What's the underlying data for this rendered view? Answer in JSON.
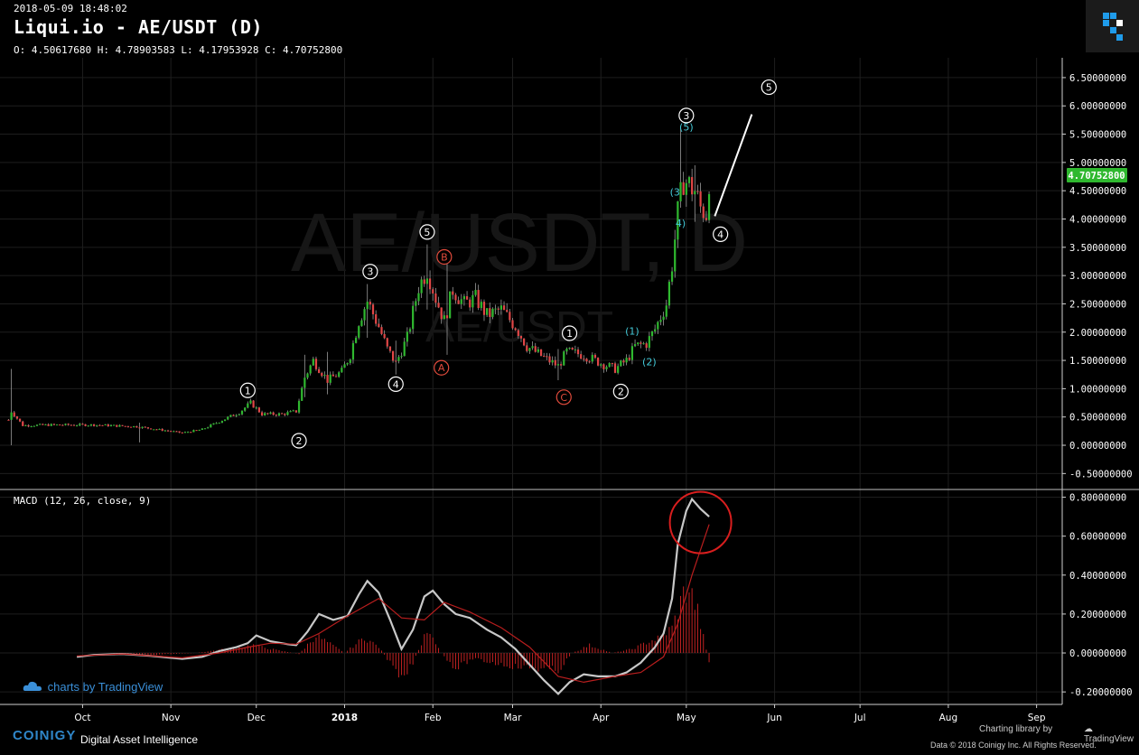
{
  "header": {
    "timestamp": "2018-05-09 18:48:02",
    "title": "Liqui.io - AE/USDT (D)",
    "ohlc": "O: 4.50617680 H: 4.78903583 L: 4.17953928 C: 4.70752800"
  },
  "watermark": {
    "line1": "AE/USDT, D",
    "line2": "AE/USDT"
  },
  "price_badge": "4.70752800",
  "macd_label": "MACD (12, 26, close, 9)",
  "footer": {
    "tv_badge": "charts by TradingView",
    "brand": "COINIGY",
    "tagline": "Digital Asset Intelligence",
    "charting_by": "Charting library by",
    "tv_name": "TradingView",
    "copyright": "Data © 2018  Coinigy Inc. All Rights Reserved."
  },
  "colors": {
    "background": "#000000",
    "up": "#2fb82f",
    "down": "#e04646",
    "grid": "#1e1e1e",
    "macd_line": "#c8c8c8",
    "signal_line": "#b81e1e",
    "histogram": "#c22222",
    "wave_white": "#ffffff",
    "wave_cyan": "#43c9d8",
    "wave_red": "#e14b3c",
    "price_badge": "#2fb82f",
    "highlight_circle": "#d81e1e"
  },
  "chart_data": [
    {
      "type": "candlestick",
      "title": "Liqui.io - AE/USDT (D)",
      "x_tick_labels": [
        "Oct",
        "Nov",
        "Dec",
        "2018",
        "Feb",
        "Mar",
        "Apr",
        "May",
        "Jun",
        "Jul",
        "Aug",
        "Sep"
      ],
      "x_ticks": [
        "2017-10-01",
        "2017-11-01",
        "2017-12-01",
        "2018-01-01",
        "2018-02-01",
        "2018-03-01",
        "2018-04-01",
        "2018-05-01",
        "2018-06-01",
        "2018-07-01",
        "2018-08-01",
        "2018-09-01"
      ],
      "y_tick_labels": [
        "6.50000000",
        "6.00000000",
        "5.50000000",
        "5.00000000",
        "4.50000000",
        "4.00000000",
        "3.50000000",
        "3.00000000",
        "2.50000000",
        "2.00000000",
        "1.50000000",
        "1.00000000",
        "0.50000000",
        "0.00000000",
        "-0.50000000"
      ],
      "y_ticks": [
        6.5,
        6.0,
        5.5,
        5.0,
        4.5,
        4.0,
        3.5,
        3.0,
        2.5,
        2.0,
        1.5,
        1.0,
        0.5,
        0.0,
        -0.5
      ],
      "ylim": [
        -0.75,
        6.85
      ],
      "xlim": [
        "2017-09-02",
        "2018-09-10"
      ],
      "grid": true,
      "last_close": 4.707528,
      "close_path": [
        [
          "2017-09-05",
          0.45
        ],
        [
          "2017-09-06",
          0.6
        ],
        [
          "2017-09-10",
          0.35
        ],
        [
          "2017-09-20",
          0.36
        ],
        [
          "2017-10-05",
          0.36
        ],
        [
          "2017-10-20",
          0.33
        ],
        [
          "2017-11-05",
          0.22
        ],
        [
          "2017-11-12",
          0.28
        ],
        [
          "2017-11-18",
          0.42
        ],
        [
          "2017-11-25",
          0.58
        ],
        [
          "2017-11-29",
          0.75
        ],
        [
          "2017-12-03",
          0.55
        ],
        [
          "2017-12-10",
          0.55
        ],
        [
          "2017-12-15",
          0.6
        ],
        [
          "2017-12-18",
          1.2
        ],
        [
          "2017-12-21",
          1.5
        ],
        [
          "2017-12-26",
          1.15
        ],
        [
          "2017-12-31",
          1.3
        ],
        [
          "2018-01-03",
          1.6
        ],
        [
          "2018-01-06",
          2.2
        ],
        [
          "2018-01-09",
          2.55
        ],
        [
          "2018-01-13",
          2.1
        ],
        [
          "2018-01-16",
          1.7
        ],
        [
          "2018-01-19",
          1.45
        ],
        [
          "2018-01-23",
          1.9
        ],
        [
          "2018-01-27",
          2.8
        ],
        [
          "2018-01-30",
          3.1
        ],
        [
          "2018-02-02",
          2.6
        ],
        [
          "2018-02-05",
          2.2
        ],
        [
          "2018-02-08",
          2.75
        ],
        [
          "2018-02-12",
          2.5
        ],
        [
          "2018-02-16",
          2.6
        ],
        [
          "2018-02-20",
          2.3
        ],
        [
          "2018-02-25",
          2.4
        ],
        [
          "2018-03-02",
          2.1
        ],
        [
          "2018-03-06",
          1.75
        ],
        [
          "2018-03-12",
          1.55
        ],
        [
          "2018-03-17",
          1.4
        ],
        [
          "2018-03-20",
          1.65
        ],
        [
          "2018-03-26",
          1.6
        ],
        [
          "2018-04-01",
          1.45
        ],
        [
          "2018-04-06",
          1.35
        ],
        [
          "2018-04-10",
          1.5
        ],
        [
          "2018-04-13",
          1.75
        ],
        [
          "2018-04-17",
          1.8
        ],
        [
          "2018-04-20",
          2.05
        ],
        [
          "2018-04-24",
          2.5
        ],
        [
          "2018-04-26",
          3.2
        ],
        [
          "2018-04-28",
          4.1
        ],
        [
          "2018-04-30",
          4.7
        ],
        [
          "2018-05-02",
          4.6
        ],
        [
          "2018-05-04",
          4.5
        ],
        [
          "2018-05-06",
          4.2
        ],
        [
          "2018-05-08",
          4.1
        ],
        [
          "2018-05-09",
          4.707528
        ]
      ],
      "spikes": [
        {
          "date": "2017-09-06",
          "high": 1.35,
          "low": 0.0
        },
        {
          "date": "2017-10-21",
          "high": 0.4,
          "low": 0.05
        },
        {
          "date": "2017-12-18",
          "high": 1.6,
          "low": 0.85
        },
        {
          "date": "2017-12-26",
          "high": 1.65,
          "low": 0.9
        },
        {
          "date": "2018-01-09",
          "high": 2.85,
          "low": 1.9
        },
        {
          "date": "2018-01-19",
          "high": 1.85,
          "low": 1.25
        },
        {
          "date": "2018-01-30",
          "high": 3.55,
          "low": 2.4
        },
        {
          "date": "2018-02-06",
          "high": 3.25,
          "low": 1.6
        },
        {
          "date": "2018-03-17",
          "high": 1.7,
          "low": 1.15
        },
        {
          "date": "2018-04-29",
          "high": 5.6,
          "low": 4.2
        },
        {
          "date": "2018-05-04",
          "high": 4.95,
          "low": 3.95
        }
      ],
      "projection": [
        [
          "2018-05-11",
          4.05
        ],
        [
          "2018-05-24",
          5.85
        ]
      ],
      "wave_labels": [
        {
          "text": "1",
          "date": "2017-11-28",
          "y": 0.97,
          "color": "white",
          "circled": true
        },
        {
          "text": "2",
          "date": "2017-12-16",
          "y": 0.08,
          "color": "white",
          "circled": true
        },
        {
          "text": "3",
          "date": "2018-01-10",
          "y": 3.07,
          "color": "white",
          "circled": true
        },
        {
          "text": "4",
          "date": "2018-01-19",
          "y": 1.08,
          "color": "white",
          "circled": true
        },
        {
          "text": "5",
          "date": "2018-01-30",
          "y": 3.77,
          "color": "white",
          "circled": true
        },
        {
          "text": "B",
          "date": "2018-02-05",
          "y": 3.33,
          "color": "red",
          "circled": true
        },
        {
          "text": "A",
          "date": "2018-02-04",
          "y": 1.37,
          "color": "red",
          "circled": true
        },
        {
          "text": "C",
          "date": "2018-03-19",
          "y": 0.85,
          "color": "red",
          "circled": true
        },
        {
          "text": "1",
          "date": "2018-03-21",
          "y": 1.98,
          "color": "white",
          "circled": true
        },
        {
          "text": "2",
          "date": "2018-04-08",
          "y": 0.95,
          "color": "white",
          "circled": true
        },
        {
          "text": "(1)",
          "date": "2018-04-12",
          "y": 2.02,
          "color": "cyan",
          "circled": false
        },
        {
          "text": "(2)",
          "date": "2018-04-18",
          "y": 1.48,
          "color": "cyan",
          "circled": false
        },
        {
          "text": "(3",
          "date": "2018-04-27",
          "y": 4.48,
          "color": "cyan",
          "circled": false
        },
        {
          "text": "4)",
          "date": "2018-04-29",
          "y": 3.93,
          "color": "cyan",
          "circled": false
        },
        {
          "text": "(5)",
          "date": "2018-05-01",
          "y": 5.63,
          "color": "cyan",
          "circled": false
        },
        {
          "text": "3",
          "date": "2018-05-01",
          "y": 5.83,
          "color": "white",
          "circled": true
        },
        {
          "text": "4",
          "date": "2018-05-13",
          "y": 3.73,
          "color": "white",
          "circled": true
        },
        {
          "text": "5",
          "date": "2018-05-30",
          "y": 6.33,
          "color": "white",
          "circled": true
        }
      ]
    },
    {
      "type": "line",
      "title": "MACD (12, 26, close, 9)",
      "y_tick_labels": [
        "0.80000000",
        "0.60000000",
        "0.40000000",
        "0.20000000",
        "0.00000000",
        "-0.20000000"
      ],
      "y_ticks": [
        0.8,
        0.6,
        0.4,
        0.2,
        0.0,
        -0.2
      ],
      "ylim": [
        -0.255,
        0.835
      ],
      "xlim": [
        "2017-09-02",
        "2018-09-10"
      ],
      "grid": true,
      "series": [
        {
          "role": "macd",
          "points": [
            [
              "2017-09-29",
              -0.02
            ],
            [
              "2017-10-05",
              -0.01
            ],
            [
              "2017-10-15",
              -0.005
            ],
            [
              "2017-10-25",
              -0.015
            ],
            [
              "2017-11-05",
              -0.03
            ],
            [
              "2017-11-12",
              -0.02
            ],
            [
              "2017-11-18",
              0.01
            ],
            [
              "2017-11-24",
              0.03
            ],
            [
              "2017-11-28",
              0.05
            ],
            [
              "2017-12-01",
              0.09
            ],
            [
              "2017-12-06",
              0.06
            ],
            [
              "2017-12-12",
              0.045
            ],
            [
              "2017-12-15",
              0.04
            ],
            [
              "2017-12-19",
              0.11
            ],
            [
              "2017-12-23",
              0.2
            ],
            [
              "2017-12-28",
              0.17
            ],
            [
              "2018-01-02",
              0.19
            ],
            [
              "2018-01-06",
              0.3
            ],
            [
              "2018-01-09",
              0.37
            ],
            [
              "2018-01-13",
              0.31
            ],
            [
              "2018-01-17",
              0.17
            ],
            [
              "2018-01-21",
              0.02
            ],
            [
              "2018-01-25",
              0.12
            ],
            [
              "2018-01-29",
              0.29
            ],
            [
              "2018-02-01",
              0.32
            ],
            [
              "2018-02-05",
              0.25
            ],
            [
              "2018-02-09",
              0.2
            ],
            [
              "2018-02-14",
              0.18
            ],
            [
              "2018-02-20",
              0.12
            ],
            [
              "2018-02-25",
              0.08
            ],
            [
              "2018-03-02",
              0.02
            ],
            [
              "2018-03-07",
              -0.06
            ],
            [
              "2018-03-12",
              -0.14
            ],
            [
              "2018-03-17",
              -0.21
            ],
            [
              "2018-03-21",
              -0.15
            ],
            [
              "2018-03-26",
              -0.11
            ],
            [
              "2018-03-31",
              -0.12
            ],
            [
              "2018-04-06",
              -0.12
            ],
            [
              "2018-04-10",
              -0.1
            ],
            [
              "2018-04-15",
              -0.05
            ],
            [
              "2018-04-20",
              0.03
            ],
            [
              "2018-04-23",
              0.1
            ],
            [
              "2018-04-26",
              0.28
            ],
            [
              "2018-04-28",
              0.56
            ],
            [
              "2018-05-01",
              0.73
            ],
            [
              "2018-05-03",
              0.79
            ],
            [
              "2018-05-06",
              0.74
            ],
            [
              "2018-05-09",
              0.7
            ]
          ]
        },
        {
          "role": "signal",
          "points": [
            [
              "2017-09-29",
              -0.015
            ],
            [
              "2017-10-15",
              -0.005
            ],
            [
              "2017-11-05",
              -0.025
            ],
            [
              "2017-11-18",
              0.0
            ],
            [
              "2017-11-28",
              0.03
            ],
            [
              "2017-12-06",
              0.05
            ],
            [
              "2017-12-15",
              0.045
            ],
            [
              "2017-12-23",
              0.1
            ],
            [
              "2018-01-02",
              0.19
            ],
            [
              "2018-01-13",
              0.28
            ],
            [
              "2018-01-21",
              0.18
            ],
            [
              "2018-01-29",
              0.17
            ],
            [
              "2018-02-05",
              0.26
            ],
            [
              "2018-02-14",
              0.21
            ],
            [
              "2018-02-25",
              0.13
            ],
            [
              "2018-03-07",
              0.03
            ],
            [
              "2018-03-17",
              -0.12
            ],
            [
              "2018-03-26",
              -0.15
            ],
            [
              "2018-04-06",
              -0.12
            ],
            [
              "2018-04-15",
              -0.1
            ],
            [
              "2018-04-23",
              -0.02
            ],
            [
              "2018-04-28",
              0.15
            ],
            [
              "2018-05-03",
              0.4
            ],
            [
              "2018-05-09",
              0.66
            ]
          ]
        }
      ],
      "histogram": [
        [
          "2017-10-10",
          0.0
        ],
        [
          "2017-10-25",
          -0.01
        ],
        [
          "2017-11-10",
          0.0
        ],
        [
          "2017-11-20",
          0.02
        ],
        [
          "2017-11-30",
          0.04
        ],
        [
          "2017-12-08",
          0.015
        ],
        [
          "2017-12-16",
          -0.005
        ],
        [
          "2017-12-22",
          0.09
        ],
        [
          "2018-01-01",
          0.0
        ],
        [
          "2018-01-08",
          0.08
        ],
        [
          "2018-01-13",
          0.03
        ],
        [
          "2018-01-17",
          -0.05
        ],
        [
          "2018-01-21",
          -0.15
        ],
        [
          "2018-01-25",
          -0.05
        ],
        [
          "2018-01-30",
          0.11
        ],
        [
          "2018-02-04",
          0.0
        ],
        [
          "2018-02-09",
          -0.08
        ],
        [
          "2018-02-15",
          -0.03
        ],
        [
          "2018-02-22",
          -0.05
        ],
        [
          "2018-03-02",
          -0.07
        ],
        [
          "2018-03-10",
          -0.08
        ],
        [
          "2018-03-17",
          -0.09
        ],
        [
          "2018-03-22",
          0.0
        ],
        [
          "2018-03-28",
          0.04
        ],
        [
          "2018-04-05",
          0.0
        ],
        [
          "2018-04-12",
          0.02
        ],
        [
          "2018-04-18",
          0.06
        ],
        [
          "2018-04-22",
          0.08
        ],
        [
          "2018-04-26",
          0.13
        ],
        [
          "2018-04-30",
          0.3
        ],
        [
          "2018-05-02",
          0.33
        ],
        [
          "2018-05-05",
          0.21
        ],
        [
          "2018-05-07",
          0.08
        ],
        [
          "2018-05-09",
          -0.05
        ]
      ],
      "highlight_circle": {
        "date": "2018-05-06",
        "y": 0.67
      }
    }
  ]
}
